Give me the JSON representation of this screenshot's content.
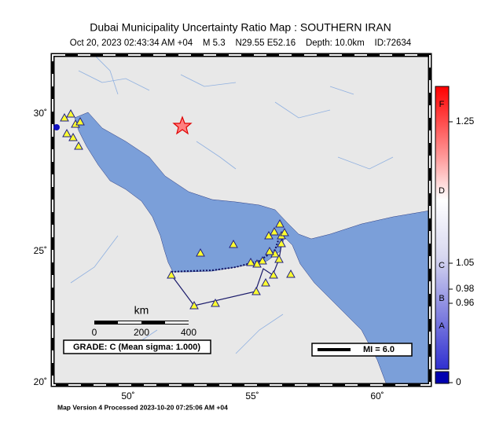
{
  "header": {
    "title": "Dubai Municipality Uncertainty Ratio Map : SOUTHERN IRAN",
    "subtitle": "Oct 20, 2023 02:43:34 AM +04    M 5.3    N29.55 E52.16    Depth: 10.0km    ID:72634"
  },
  "map": {
    "lat_labels": [
      "30˚",
      "25˚",
      "20˚"
    ],
    "lon_labels": [
      "50˚",
      "55˚",
      "60˚"
    ],
    "scale_bar": {
      "unit": "km",
      "labels": [
        "0",
        "200",
        "400"
      ]
    },
    "grade": "GRADE: C (Mean sigma: 1.000)",
    "magnitude_legend": "MI = 6.0"
  },
  "colorbar": {
    "ticks": [
      "1.25",
      "1.05",
      "0.98",
      "0.96",
      "0"
    ],
    "grades": [
      "F",
      "D",
      "C",
      "B",
      "A"
    ]
  },
  "footer": "Map Version 4 Processed 2023-10-20 07:25:06 AM +04"
}
